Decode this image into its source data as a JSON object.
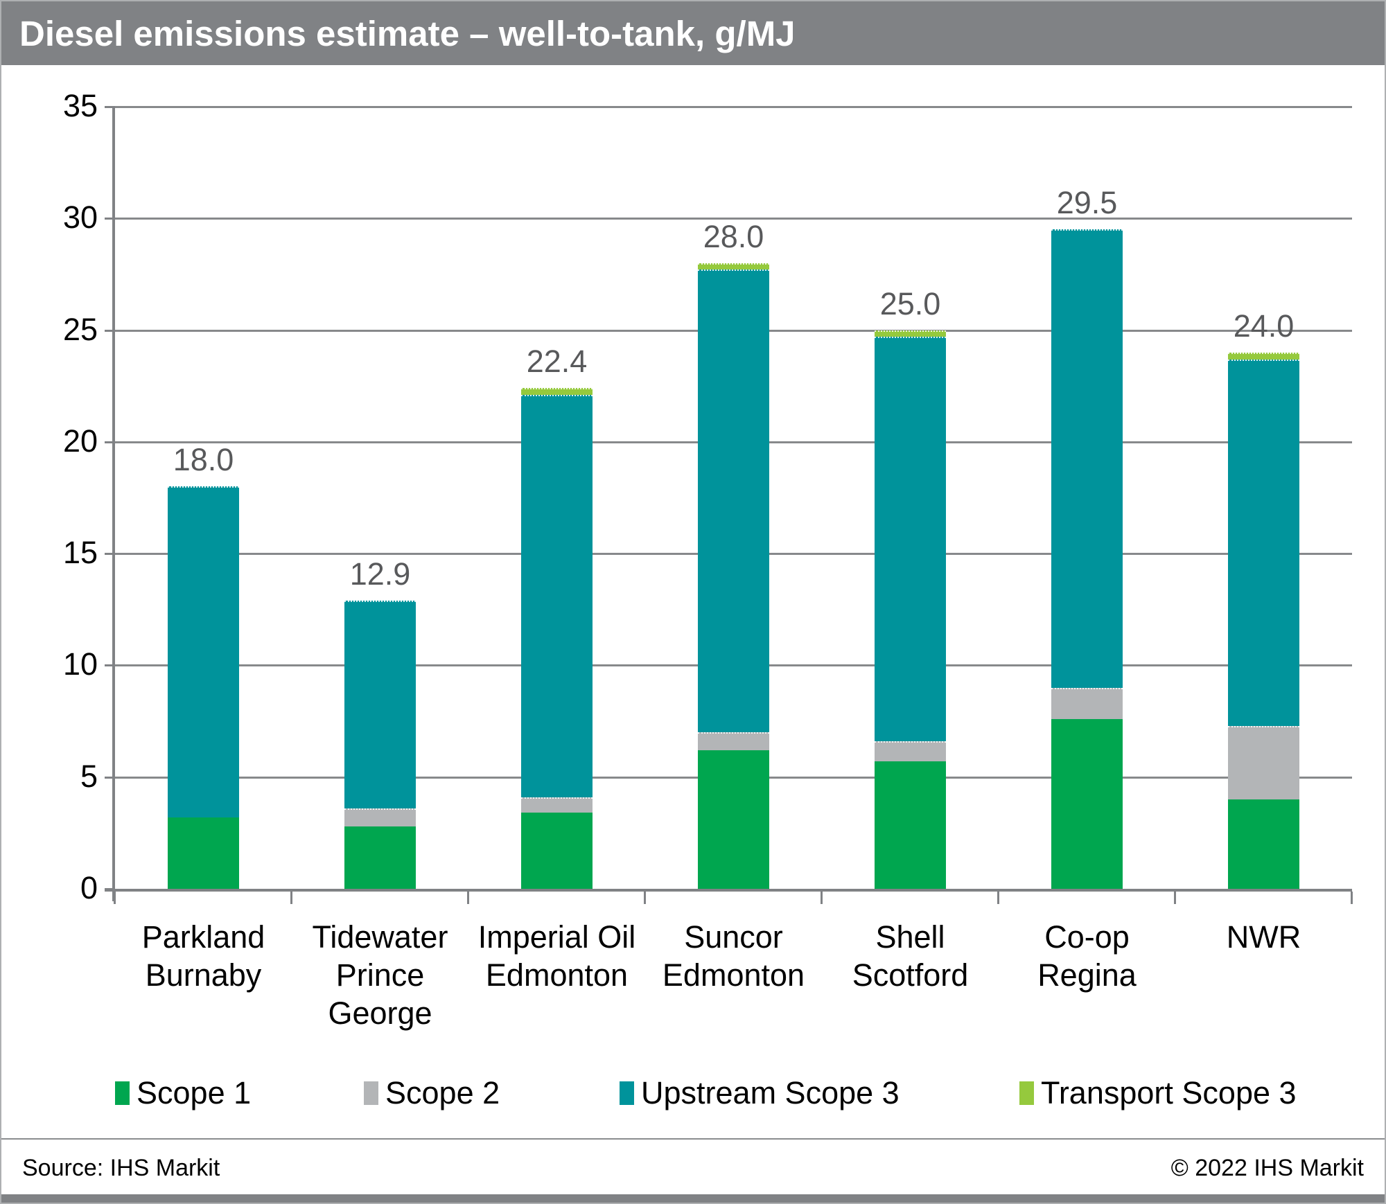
{
  "header": {
    "title": "Diesel emissions estimate – well-to-tank, g/MJ"
  },
  "footer": {
    "source": "Source: IHS Markit",
    "copyright": "© 2022 IHS Markit"
  },
  "colors": {
    "header_bg": "#808285",
    "scope1_green": "#00A64F",
    "scope2_gray": "#B3B5B7",
    "upstream_teal": "#00939B",
    "transport_lime": "#95C93D",
    "gridline": "#87898b",
    "data_label": "#58595b"
  },
  "chart_data": {
    "type": "bar",
    "stacked": true,
    "title": "Diesel emissions estimate – well-to-tank, g/MJ",
    "xlabel": "",
    "ylabel": "g/MJ",
    "ylim": [
      0,
      35
    ],
    "y_ticks": [
      0,
      5,
      10,
      15,
      20,
      25,
      30,
      35
    ],
    "grid": true,
    "legend_position": "bottom",
    "categories": [
      "Parkland\nBurnaby",
      "Tidewater\nPrince\nGeorge",
      "Imperial Oil\nEdmonton",
      "Suncor\nEdmonton",
      "Shell\nScotford",
      "Co-op\nRegina",
      "NWR"
    ],
    "series": [
      {
        "name": "Scope 1",
        "color": "#00A64F",
        "values": [
          3.2,
          2.8,
          3.4,
          6.2,
          5.7,
          7.6,
          4.0
        ]
      },
      {
        "name": "Scope 2",
        "color": "#B3B5B7",
        "values": [
          0.0,
          0.8,
          0.7,
          0.8,
          0.9,
          1.4,
          3.3
        ]
      },
      {
        "name": "Upstream Scope 3",
        "color": "#00939B",
        "values": [
          14.8,
          9.3,
          18.0,
          20.7,
          18.1,
          20.5,
          16.4
        ]
      },
      {
        "name": "Transport Scope 3",
        "color": "#95C93D",
        "values": [
          0.0,
          0.0,
          0.3,
          0.3,
          0.3,
          0.0,
          0.3
        ]
      }
    ],
    "totals": [
      18.0,
      12.9,
      22.4,
      28.0,
      25.0,
      29.5,
      24.0
    ],
    "total_labels": [
      "18.0",
      "12.9",
      "22.4",
      "28.0",
      "25.0",
      "29.5",
      "24.0"
    ]
  }
}
